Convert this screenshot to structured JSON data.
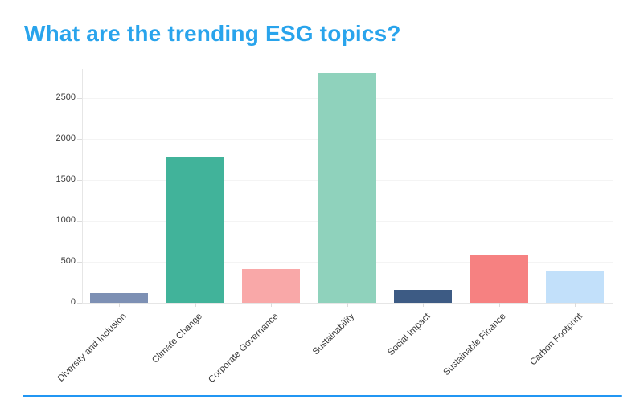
{
  "header": {
    "title": "What are the trending ESG topics?",
    "title_color": "#29A4EC"
  },
  "footer": {
    "divider_color": "#2196F3"
  },
  "chart_data": {
    "type": "bar",
    "title": "What are the trending ESG topics?",
    "categories": [
      "Diversity and Inclusion",
      "Climate Change",
      "Corporate Governance",
      "Sustainability",
      "Social Impact",
      "Sustainable Finance",
      "Carbon Footprint"
    ],
    "values": [
      120,
      1780,
      410,
      2800,
      160,
      585,
      395
    ],
    "bar_colors": [
      "#7D90B4",
      "#41B39A",
      "#F9A8A8",
      "#8FD2BC",
      "#3D5B84",
      "#F68181",
      "#C2E0FA"
    ],
    "xlabel": "",
    "ylabel": "",
    "yticks": [
      0,
      500,
      1000,
      1500,
      2000,
      2500
    ],
    "ylim": [
      0,
      2850
    ],
    "x_tick_label_rotation_deg": 45,
    "grid": "very-faint-horizontal",
    "legend": false,
    "axis_color": "#e6e6e6",
    "tick_label_color": "#3b3b3b",
    "background": "#ffffff"
  }
}
